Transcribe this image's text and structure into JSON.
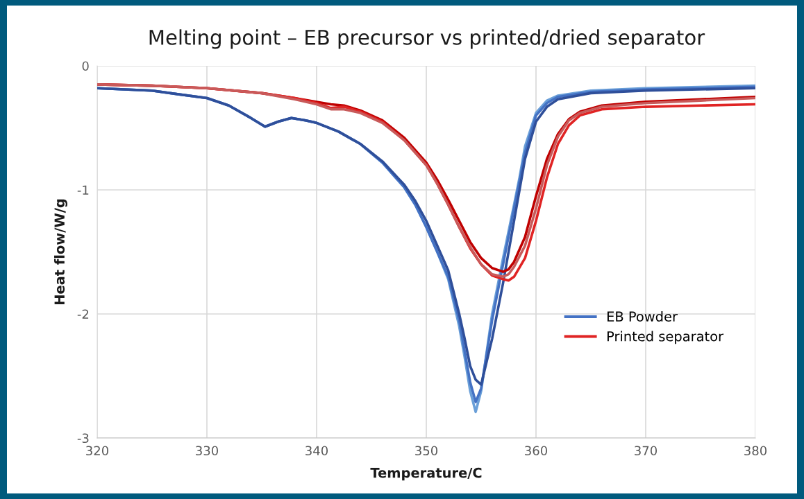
{
  "chart_data": {
    "type": "line",
    "title": "Melting point – EB precursor vs printed/dried separator",
    "xlabel": "Temperature/C",
    "ylabel": "Heat flow/W/g",
    "xlim": [
      320,
      380
    ],
    "xticks": [
      320,
      330,
      340,
      350,
      360,
      370,
      380
    ],
    "ylim": [
      -3,
      0
    ],
    "yticks": [
      -3,
      -2,
      -1,
      0
    ],
    "grid": true,
    "legend": "lower right",
    "marker": "none",
    "line_style": "solid",
    "series": [
      {
        "color": "#6a9fd8",
        "x": [
          320,
          325,
          330,
          332,
          334,
          335.3,
          336.5,
          337.7,
          339,
          340,
          342,
          344,
          346,
          348,
          349,
          350,
          351,
          352,
          353,
          353.5,
          354,
          354.5,
          355,
          356,
          357,
          358,
          358.5,
          359,
          360,
          361,
          362,
          365,
          370,
          380
        ],
        "values": [
          -0.18,
          -0.2,
          -0.26,
          -0.32,
          -0.42,
          -0.49,
          -0.45,
          -0.42,
          -0.44,
          -0.46,
          -0.53,
          -0.63,
          -0.78,
          -0.98,
          -1.12,
          -1.3,
          -1.5,
          -1.72,
          -2.1,
          -2.35,
          -2.62,
          -2.79,
          -2.62,
          -2.0,
          -1.55,
          -1.12,
          -0.9,
          -0.65,
          -0.38,
          -0.28,
          -0.24,
          -0.2,
          -0.18,
          -0.16
        ]
      },
      {
        "name": "EB Powder",
        "color": "#4472c4",
        "x": [
          320,
          325,
          330,
          332,
          334,
          335.3,
          336.5,
          337.7,
          339,
          340,
          342,
          344,
          346,
          348,
          349,
          350,
          351,
          352,
          353,
          353.5,
          354,
          354.5,
          355,
          356,
          357,
          358,
          358.5,
          359,
          360,
          361,
          362,
          365,
          370,
          380
        ],
        "values": [
          -0.18,
          -0.2,
          -0.26,
          -0.32,
          -0.42,
          -0.49,
          -0.45,
          -0.42,
          -0.44,
          -0.46,
          -0.53,
          -0.63,
          -0.78,
          -0.98,
          -1.12,
          -1.3,
          -1.5,
          -1.7,
          -2.05,
          -2.3,
          -2.55,
          -2.71,
          -2.6,
          -2.05,
          -1.6,
          -1.15,
          -0.93,
          -0.7,
          -0.4,
          -0.3,
          -0.25,
          -0.21,
          -0.19,
          -0.17
        ]
      },
      {
        "color": "#2f4f9a",
        "x": [
          320,
          325,
          330,
          332,
          334,
          335.3,
          336.5,
          337.7,
          339,
          340,
          342,
          344,
          346,
          348,
          349,
          350,
          351,
          352,
          353,
          353.5,
          354,
          354.5,
          355,
          356,
          357,
          358,
          358.5,
          359,
          360,
          361,
          362,
          365,
          370,
          380
        ],
        "values": [
          -0.18,
          -0.2,
          -0.26,
          -0.32,
          -0.42,
          -0.49,
          -0.45,
          -0.42,
          -0.44,
          -0.46,
          -0.53,
          -0.63,
          -0.77,
          -0.96,
          -1.09,
          -1.25,
          -1.45,
          -1.65,
          -2.0,
          -2.2,
          -2.42,
          -2.53,
          -2.57,
          -2.2,
          -1.75,
          -1.25,
          -1.0,
          -0.75,
          -0.45,
          -0.33,
          -0.27,
          -0.22,
          -0.2,
          -0.18
        ]
      },
      {
        "color": "#c00000",
        "x": [
          320,
          325,
          330,
          335,
          338,
          340,
          341.3,
          342.5,
          344,
          346,
          348,
          350,
          351,
          352,
          353,
          354,
          355,
          356,
          357,
          357.5,
          358,
          359,
          360,
          361,
          362,
          363,
          364,
          366,
          370,
          375,
          380
        ],
        "values": [
          -0.15,
          -0.16,
          -0.18,
          -0.22,
          -0.26,
          -0.29,
          -0.31,
          -0.32,
          -0.36,
          -0.44,
          -0.58,
          -0.78,
          -0.92,
          -1.08,
          -1.25,
          -1.42,
          -1.55,
          -1.63,
          -1.66,
          -1.64,
          -1.58,
          -1.38,
          -1.05,
          -0.75,
          -0.55,
          -0.43,
          -0.37,
          -0.32,
          -0.29,
          -0.27,
          -0.25
        ]
      },
      {
        "name": "Printed separator",
        "color": "#e02424",
        "x": [
          320,
          325,
          330,
          335,
          338,
          340,
          341.3,
          342.5,
          344,
          346,
          348,
          350,
          351,
          352,
          353,
          354,
          355,
          356,
          357,
          357.5,
          358,
          359,
          360,
          361,
          362,
          363,
          364,
          366,
          370,
          375,
          380
        ],
        "values": [
          -0.15,
          -0.16,
          -0.18,
          -0.22,
          -0.26,
          -0.3,
          -0.34,
          -0.33,
          -0.37,
          -0.45,
          -0.6,
          -0.8,
          -0.95,
          -1.12,
          -1.3,
          -1.47,
          -1.6,
          -1.69,
          -1.72,
          -1.73,
          -1.7,
          -1.55,
          -1.25,
          -0.9,
          -0.63,
          -0.48,
          -0.4,
          -0.35,
          -0.33,
          -0.32,
          -0.31
        ]
      },
      {
        "color": "#c85a5a",
        "x": [
          320,
          325,
          330,
          335,
          338,
          340,
          341.3,
          342.5,
          344,
          346,
          348,
          350,
          351,
          352,
          353,
          354,
          355,
          356,
          357,
          357.5,
          358,
          359,
          360,
          361,
          362,
          363,
          364,
          366,
          370,
          375,
          380
        ],
        "values": [
          -0.15,
          -0.16,
          -0.18,
          -0.22,
          -0.27,
          -0.31,
          -0.35,
          -0.35,
          -0.38,
          -0.46,
          -0.6,
          -0.8,
          -0.95,
          -1.12,
          -1.3,
          -1.46,
          -1.6,
          -1.68,
          -1.7,
          -1.68,
          -1.62,
          -1.45,
          -1.15,
          -0.8,
          -0.57,
          -0.44,
          -0.38,
          -0.33,
          -0.3,
          -0.28,
          -0.26
        ]
      }
    ]
  }
}
